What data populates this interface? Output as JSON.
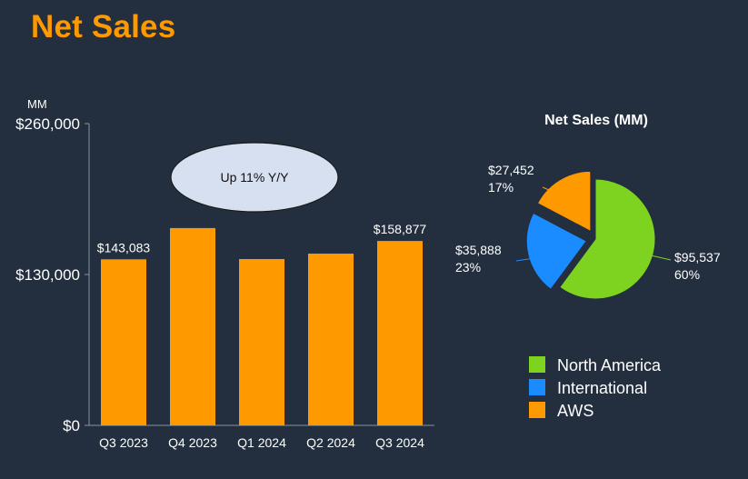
{
  "page": {
    "title": "Net Sales"
  },
  "chart_data": [
    {
      "type": "bar",
      "unit_label": "MM",
      "categories": [
        "Q3 2023",
        "Q4 2023",
        "Q1 2024",
        "Q2 2024",
        "Q3 2024"
      ],
      "values": [
        143083,
        170000,
        143313,
        147977,
        158877
      ],
      "data_labels": [
        "$143,083",
        "",
        "",
        "",
        "$158,877"
      ],
      "yticks": [
        {
          "value": 0,
          "label": "$0"
        },
        {
          "value": 130000,
          "label": "$130,000"
        },
        {
          "value": 260000,
          "label": "$260,000"
        }
      ],
      "ylim": [
        0,
        260000
      ],
      "color": "#ff9900",
      "annotation": "Up 11% Y/Y"
    },
    {
      "type": "pie",
      "title": "Net Sales (MM)",
      "slices": [
        {
          "name": "North America",
          "value": 95537,
          "percent": 60,
          "value_label": "$95,537",
          "percent_label": "60%",
          "color": "#7ed321"
        },
        {
          "name": "International",
          "value": 35888,
          "percent": 23,
          "value_label": "$35,888",
          "percent_label": "23%",
          "color": "#1a8cff"
        },
        {
          "name": "AWS",
          "value": 27452,
          "percent": 17,
          "value_label": "$27,452",
          "percent_label": "17%",
          "color": "#ff9900"
        }
      ],
      "legend_position": "bottom"
    }
  ]
}
